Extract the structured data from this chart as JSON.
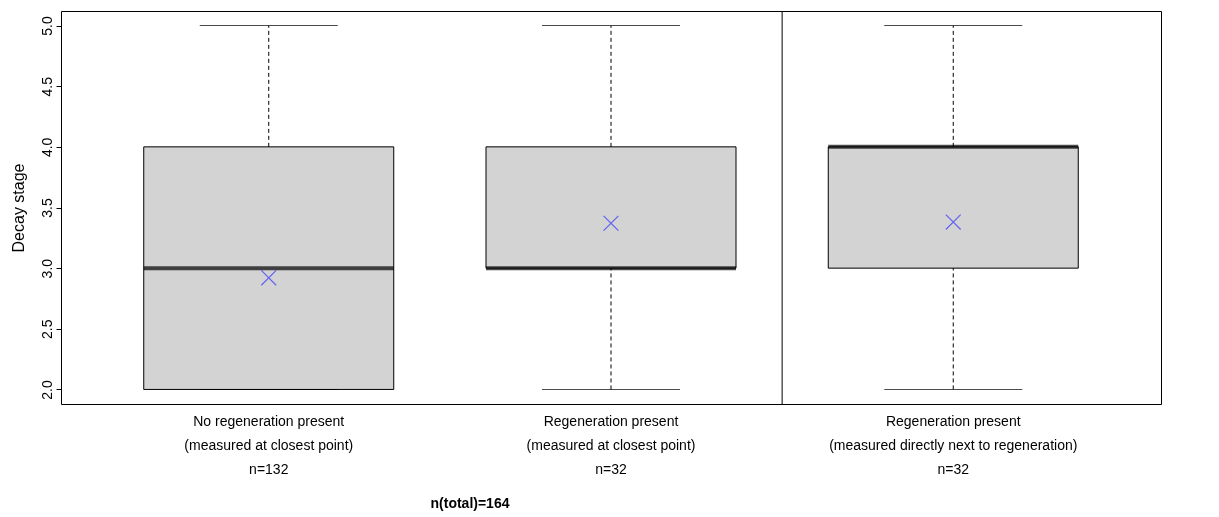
{
  "chart_data": {
    "type": "box",
    "categories": [
      "No regeneration present\n(measured at closest point)\nn=132",
      "Regeneration present\n(measured at closest point)\nn=32",
      "Regeneration present\n(measured directly next to regeneration)\nn=32"
    ],
    "boxes": [
      {
        "low": 2,
        "q1": 2,
        "median": 3,
        "q3": 4,
        "high": 5,
        "mean": 2.92
      },
      {
        "low": 2,
        "q1": 3,
        "median": 3,
        "q3": 4,
        "high": 5,
        "mean": 3.37
      },
      {
        "low": 2,
        "q1": 3,
        "median": 4,
        "q3": 4,
        "high": 5,
        "mean": 3.38
      }
    ],
    "color": "#d3d3d3",
    "ylabel": "Decay stage",
    "ylim": [
      1.88,
      5.12
    ],
    "yticks": [
      {
        "value": 2,
        "label": "2.0"
      },
      {
        "value": 2.5,
        "label": "2.5"
      },
      {
        "value": 3,
        "label": "3.0"
      },
      {
        "value": 3.5,
        "label": "3.5"
      },
      {
        "value": 4,
        "label": "4.0"
      },
      {
        "value": 4.5,
        "label": "4.5"
      },
      {
        "value": 5,
        "label": "5.0"
      }
    ],
    "marker": "cross",
    "annotations": [
      "n(total)=164"
    ],
    "grid": false
  }
}
